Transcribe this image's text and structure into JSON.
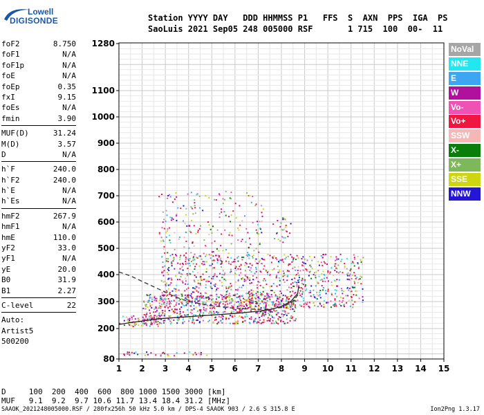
{
  "logo": {
    "line1": "Lowell",
    "line2": "DIGISONDE"
  },
  "header": {
    "line1": "Station YYYY DAY   DDD HHMMSS P1   FFS  S  AXN  PPS  IGA  PS",
    "line2": "SaoLuis 2021 Sep05 248 005000 RSF       1 715  100  00-  11"
  },
  "params": {
    "group1": [
      {
        "label": "foF2",
        "value": "8.750"
      },
      {
        "label": "foF1",
        "value": "N/A"
      },
      {
        "label": "foF1p",
        "value": "N/A"
      },
      {
        "label": "foE",
        "value": "N/A"
      },
      {
        "label": "foEp",
        "value": "0.35"
      },
      {
        "label": "fxI",
        "value": "9.15"
      },
      {
        "label": "foEs",
        "value": "N/A"
      },
      {
        "label": "fmin",
        "value": "3.90"
      }
    ],
    "group2": [
      {
        "label": "MUF(D)",
        "value": "31.24"
      },
      {
        "label": "M(D)",
        "value": "3.57"
      },
      {
        "label": "D",
        "value": "N/A"
      }
    ],
    "group3": [
      {
        "label": "h`F",
        "value": "240.0"
      },
      {
        "label": "h`F2",
        "value": "240.0"
      },
      {
        "label": "h`E",
        "value": "N/A"
      },
      {
        "label": "h`Es",
        "value": "N/A"
      }
    ],
    "group4": [
      {
        "label": "hmF2",
        "value": "267.9"
      },
      {
        "label": "hmF1",
        "value": "N/A"
      },
      {
        "label": "hmE",
        "value": "110.0"
      },
      {
        "label": "yF2",
        "value": "33.0"
      },
      {
        "label": "yF1",
        "value": "N/A"
      },
      {
        "label": "yE",
        "value": "20.0"
      },
      {
        "label": "B0",
        "value": "31.9"
      },
      {
        "label": "B1",
        "value": "2.27"
      }
    ],
    "group5": [
      {
        "label": "C-level",
        "value": "22"
      }
    ],
    "auto": [
      "Auto:",
      "Artist5",
      "500200"
    ]
  },
  "legend": [
    {
      "label": "NoVal",
      "color": "#a6a6a6"
    },
    {
      "label": "NNE",
      "color": "#22e6f0"
    },
    {
      "label": "E",
      "color": "#3da6f2"
    },
    {
      "label": "W",
      "color": "#b0109d"
    },
    {
      "label": "Vo-",
      "color": "#f051b4"
    },
    {
      "label": "Vo+",
      "color": "#f01642"
    },
    {
      "label": "SSW",
      "color": "#f6b7b7"
    },
    {
      "label": "X-",
      "color": "#0a7e0a"
    },
    {
      "label": "X+",
      "color": "#7fb85a"
    },
    {
      "label": "SSE",
      "color": "#cdd611"
    },
    {
      "label": "NNW",
      "color": "#2316d6"
    }
  ],
  "footer": {
    "line1": "D     100  200  400  600  800 1000 1500 3000 [km]",
    "line2": "MUF   9.1  9.2  9.7 10.6 11.7 13.4 18.4 31.2 [MHz]"
  },
  "bottom": {
    "file": "SAAOK_2021248005000.RSF / 280fx256h 50 kHz 5.0 km / DPS-4 SAAOK 903 / 2.6 S 315.8 E",
    "version": "Ion2Png 1.3.17"
  },
  "chart_data": {
    "type": "scatter",
    "xlabel": "",
    "ylabel": "",
    "xlim": [
      1,
      15
    ],
    "ylim": [
      80,
      1280
    ],
    "xticks": [
      1,
      2,
      3,
      4,
      5,
      6,
      7,
      8,
      9,
      10,
      11,
      12,
      13,
      14,
      15
    ],
    "yticks": [
      80,
      200,
      300,
      400,
      500,
      600,
      700,
      800,
      900,
      1000,
      1100,
      1280
    ],
    "grid": true,
    "legend_position": "right",
    "series": [
      {
        "name": "trace-F-layer",
        "style": "solid",
        "color": "#222222",
        "points": [
          [
            1.0,
            215
          ],
          [
            1.5,
            222
          ],
          [
            2.0,
            228
          ],
          [
            2.5,
            234
          ],
          [
            3.0,
            238
          ],
          [
            4.0,
            244
          ],
          [
            5.0,
            250
          ],
          [
            6.0,
            256
          ],
          [
            7.0,
            264
          ],
          [
            7.5,
            270
          ],
          [
            8.0,
            282
          ],
          [
            8.4,
            300
          ],
          [
            8.7,
            330
          ],
          [
            8.75,
            360
          ]
        ]
      },
      {
        "name": "profile-dashed",
        "style": "dashed",
        "color": "#333333",
        "points": [
          [
            1.0,
            410
          ],
          [
            1.5,
            395
          ],
          [
            2.0,
            375
          ],
          [
            2.5,
            355
          ],
          [
            3.0,
            335
          ],
          [
            3.5,
            315
          ],
          [
            4.0,
            300
          ],
          [
            5.0,
            285
          ],
          [
            6.0,
            275
          ],
          [
            7.0,
            271
          ],
          [
            7.5,
            272
          ],
          [
            8.0,
            278
          ],
          [
            8.5,
            300
          ],
          [
            8.75,
            330
          ]
        ]
      }
    ],
    "echo_regions": [
      {
        "name": "low-band",
        "x": [
          1.0,
          2.7
        ],
        "y": [
          210,
          250
        ],
        "density": 0.8
      },
      {
        "name": "F-band",
        "x": [
          2.0,
          8.6
        ],
        "y": [
          220,
          330
        ],
        "density": 0.7
      },
      {
        "name": "F-spread",
        "x": [
          2.8,
          11.5
        ],
        "y": [
          280,
          480
        ],
        "density": 0.35
      },
      {
        "name": "upper-scatter",
        "x": [
          2.7,
          7.2
        ],
        "y": [
          430,
          720
        ],
        "density": 0.12
      },
      {
        "name": "high-patch",
        "x": [
          7.6,
          8.4
        ],
        "y": [
          520,
          620
        ],
        "density": 0.25
      },
      {
        "name": "bottom-band",
        "x": [
          1.1,
          4.8
        ],
        "y": [
          95,
          110
        ],
        "density": 0.5
      }
    ]
  }
}
